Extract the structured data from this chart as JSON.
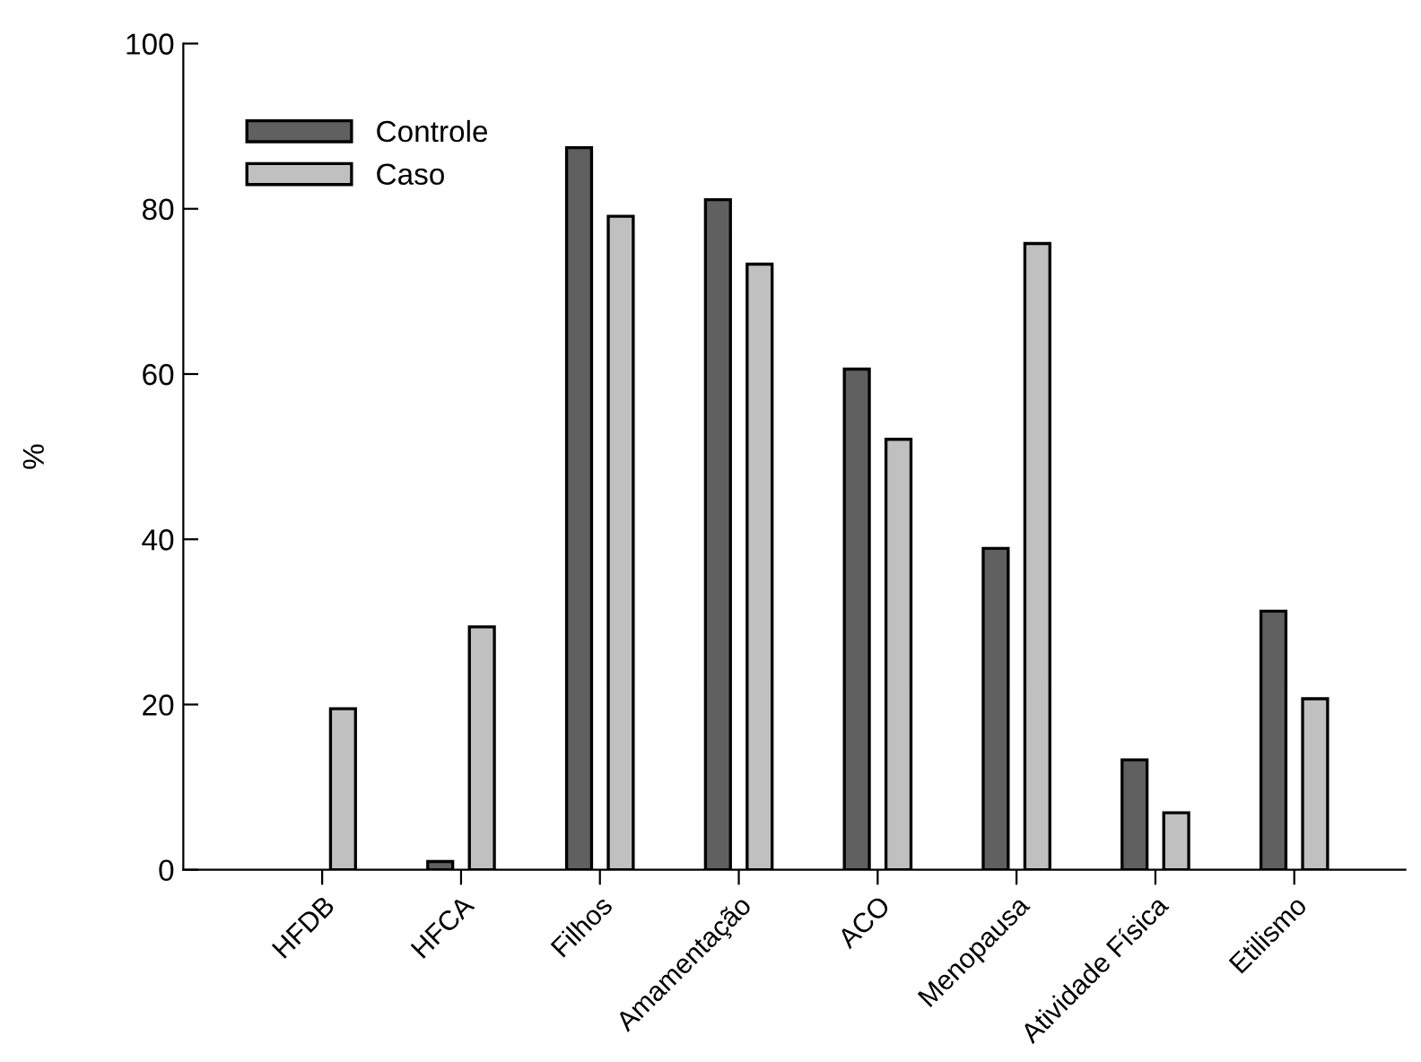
{
  "chart_data": {
    "type": "bar",
    "ylabel": "%",
    "categories": [
      "HFDB",
      "HFCA",
      "Filhos",
      "Amamentação",
      "ACO",
      "Menopausa",
      "Atividade Física",
      "Etilismo"
    ],
    "series": [
      {
        "name": "Controle",
        "color": "#606060",
        "values": [
          null,
          1.0,
          87.4,
          81.1,
          60.6,
          38.9,
          13.3,
          31.3
        ]
      },
      {
        "name": "Caso",
        "color": "#c0c0c0",
        "values": [
          19.5,
          29.4,
          79.1,
          73.3,
          52.1,
          75.8,
          6.9,
          20.7
        ]
      }
    ],
    "ylim": [
      0,
      100
    ],
    "yticks": [
      0,
      20,
      40,
      60,
      80,
      100
    ],
    "grid": false,
    "legend": "top left"
  }
}
